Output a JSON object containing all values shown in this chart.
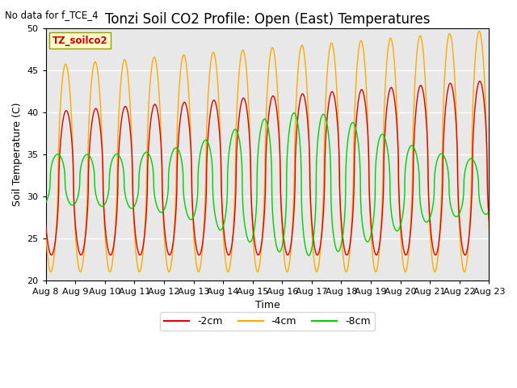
{
  "title": "Tonzi Soil CO2 Profile: Open (East) Temperatures",
  "subtitle": "No data for f_TCE_4",
  "xlabel": "Time",
  "ylabel": "Soil Temperature (C)",
  "ylim": [
    20,
    50
  ],
  "background_color": "#e8e8e8",
  "legend_label": "TZ_soilco2",
  "series": {
    "2cm": {
      "color": "#dd0000",
      "label": "-2cm"
    },
    "4cm": {
      "color": "#ffaa00",
      "label": "-4cm"
    },
    "8cm": {
      "color": "#00cc00",
      "label": "-8cm"
    }
  },
  "date_labels": [
    "Aug 8",
    "Aug 9",
    "Aug 10",
    "Aug 11",
    "Aug 12",
    "Aug 13",
    "Aug 14",
    "Aug 15",
    "Aug 16",
    "Aug 17",
    "Aug 18",
    "Aug 19",
    "Aug 20",
    "Aug 21",
    "Aug 22",
    "Aug 23"
  ],
  "num_days": 16,
  "yticks": [
    20,
    25,
    30,
    35,
    40,
    45,
    50
  ],
  "grid_color": "white",
  "title_fontsize": 12,
  "axis_fontsize": 9,
  "tick_fontsize": 8
}
